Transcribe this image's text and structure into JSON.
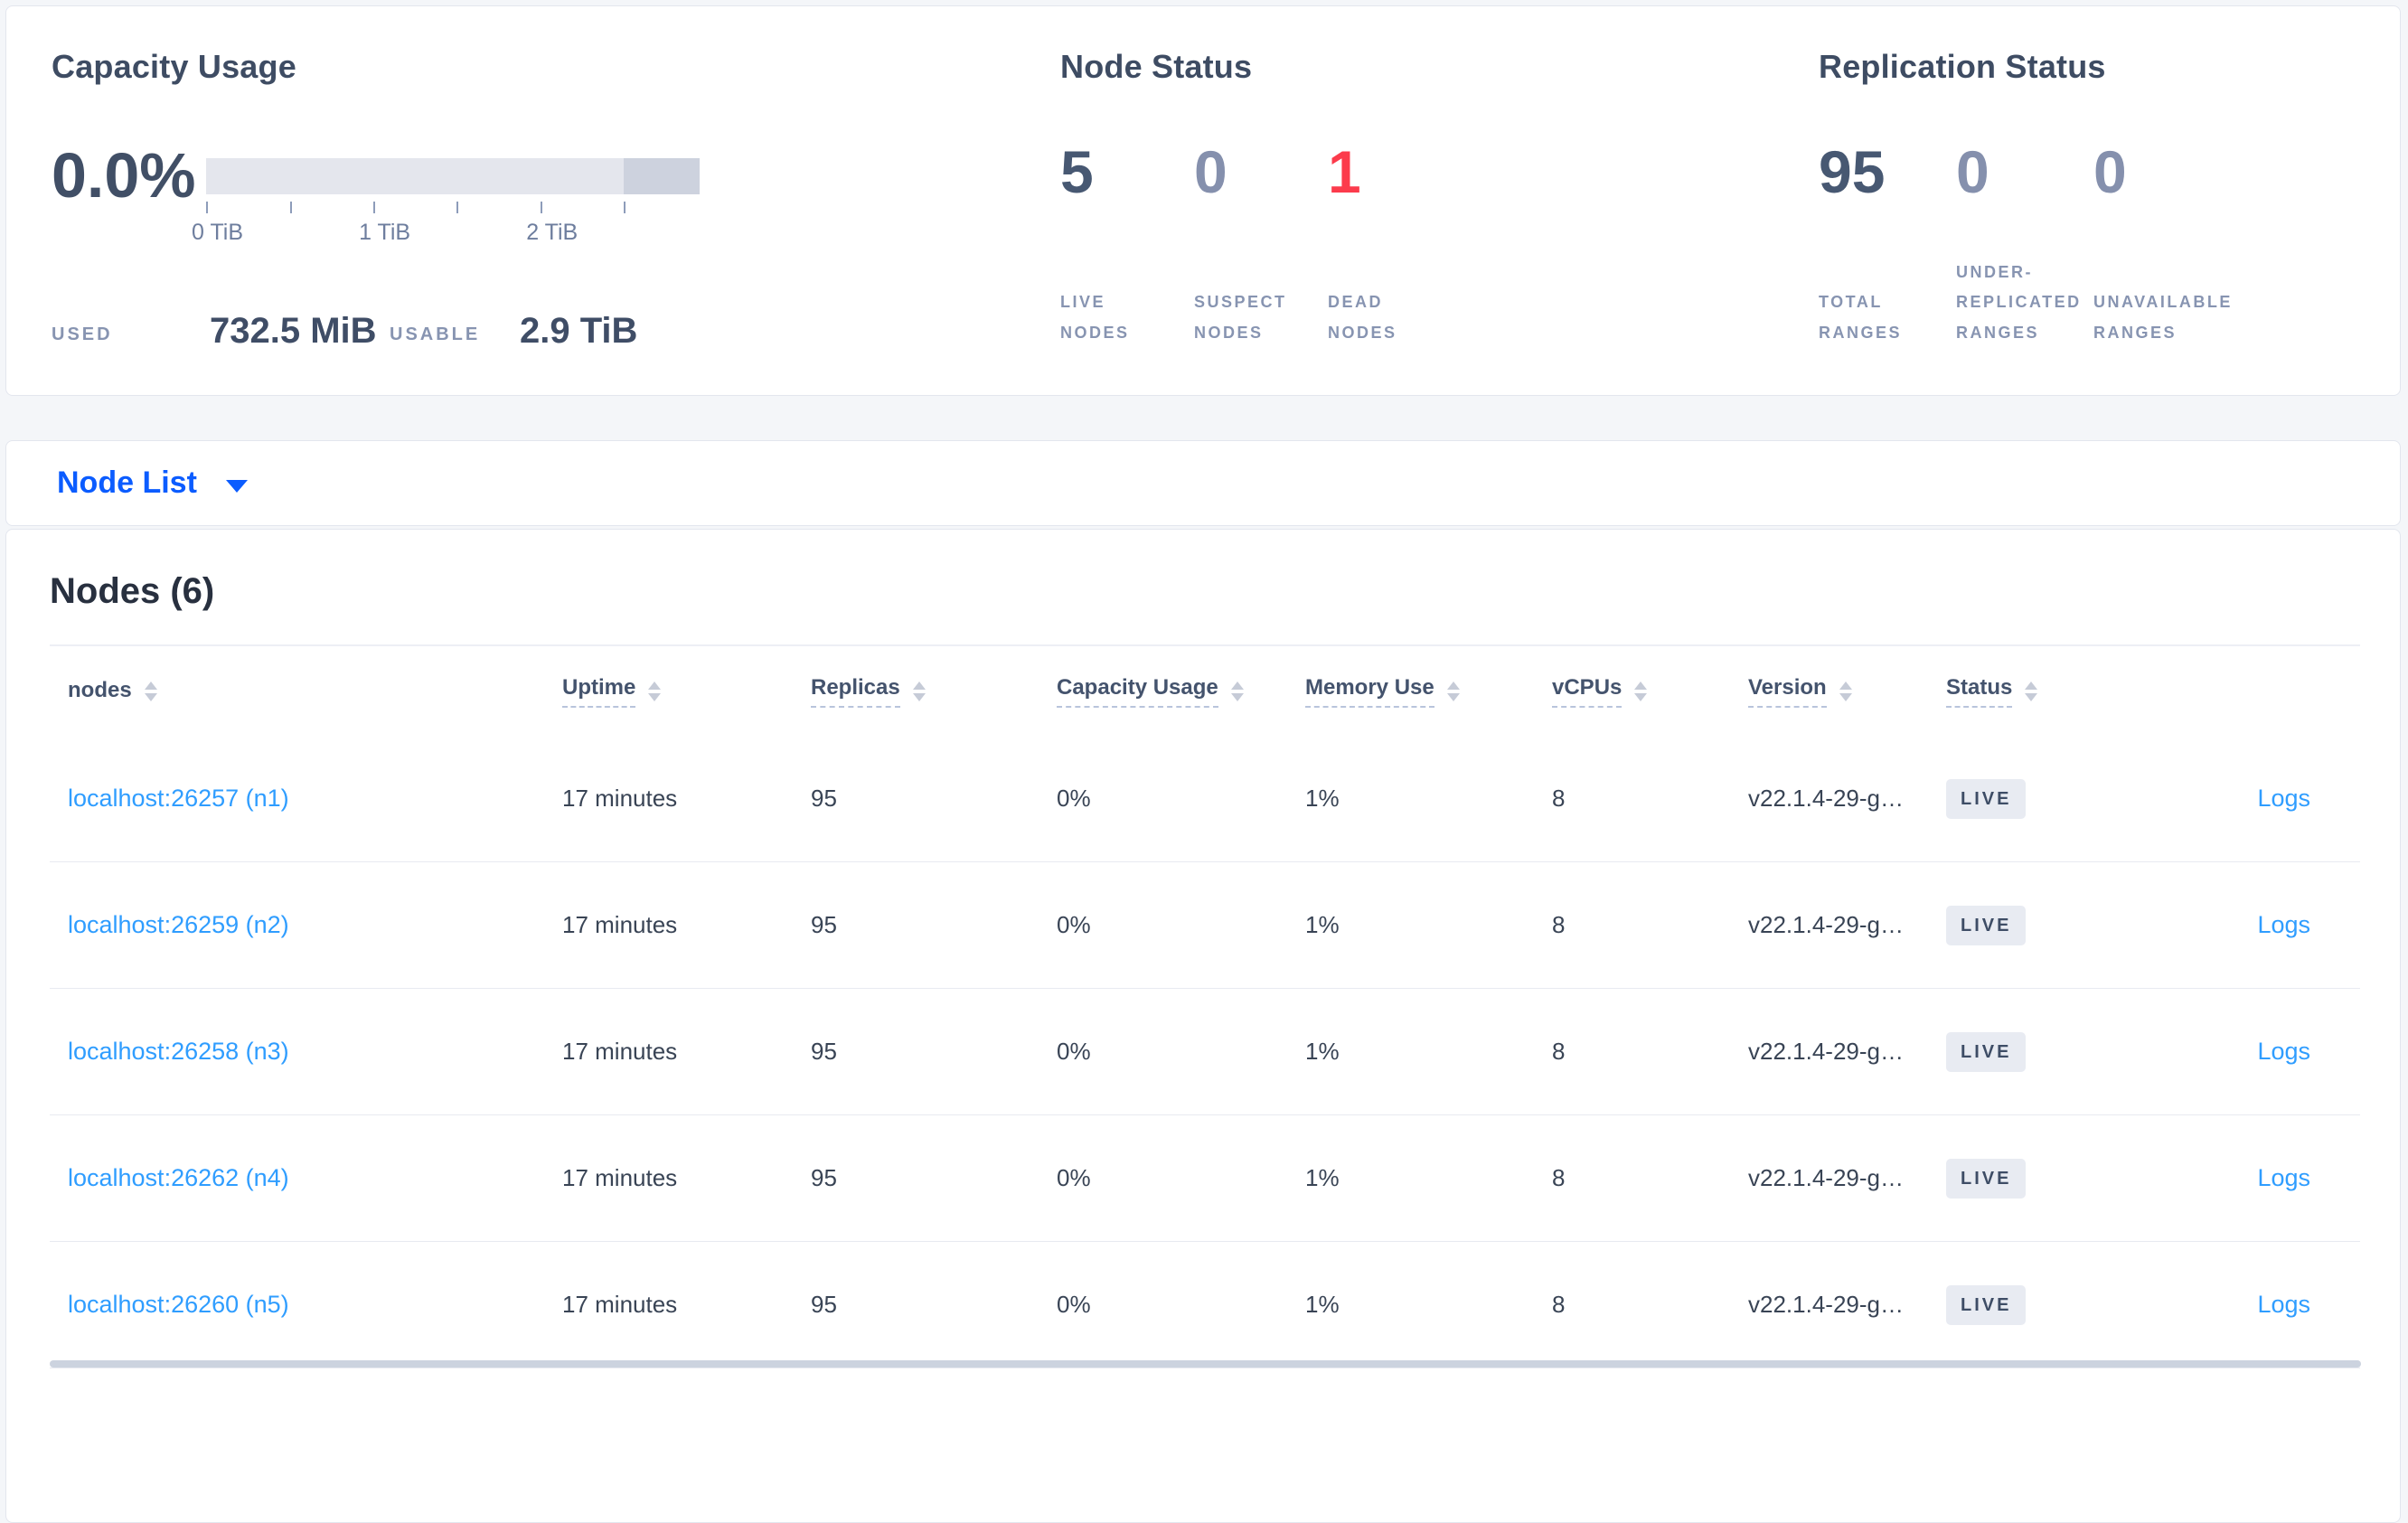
{
  "colors": {
    "accent_blue": "#0b5cff",
    "link_blue": "#2f9dff",
    "danger_red": "#fc3b4c",
    "dark_slate": "#475872",
    "muted_slate": "#8590ad",
    "label_gray": "#8794b1",
    "badge_bg": "#e8ebf2",
    "bar_light": "#e4e6ed",
    "bar_dark": "#cdd2de"
  },
  "capacity_card": {
    "title": "Capacity Usage",
    "percent_used": "0.0%",
    "gauge": {
      "ticks": [
        {
          "pct": 0,
          "label": "0 TiB"
        },
        {
          "pct": 16.95,
          "label": ""
        },
        {
          "pct": 33.9,
          "label": "1 TiB"
        },
        {
          "pct": 50.8,
          "label": ""
        },
        {
          "pct": 67.8,
          "label": "2 TiB"
        },
        {
          "pct": 84.7,
          "label": ""
        }
      ],
      "dark_segment_pct": 15.3
    },
    "used_label": "USED",
    "used_value": "732.5 MiB",
    "usable_label": "USABLE",
    "usable_value": "2.9 TiB"
  },
  "node_status_card": {
    "title": "Node Status",
    "stats": [
      {
        "value": "5",
        "label": "LIVE NODES",
        "tone": "dark"
      },
      {
        "value": "0",
        "label": "SUSPECT NODES",
        "tone": "muted"
      },
      {
        "value": "1",
        "label": "DEAD NODES",
        "tone": "danger"
      }
    ]
  },
  "replication_card": {
    "title": "Replication Status",
    "stats": [
      {
        "value": "95",
        "label": "TOTAL RANGES",
        "tone": "dark"
      },
      {
        "value": "0",
        "label": "UNDER-REPLICATED RANGES",
        "tone": "muted"
      },
      {
        "value": "0",
        "label": "UNAVAILABLE RANGES",
        "tone": "muted"
      }
    ]
  },
  "view_selector": {
    "label": "Node List"
  },
  "nodes_section": {
    "title": "Nodes (6)",
    "columns": [
      {
        "label": "nodes",
        "tooltip": false
      },
      {
        "label": "Uptime",
        "tooltip": true
      },
      {
        "label": "Replicas",
        "tooltip": true
      },
      {
        "label": "Capacity Usage",
        "tooltip": true
      },
      {
        "label": "Memory Use",
        "tooltip": true
      },
      {
        "label": "vCPUs",
        "tooltip": true
      },
      {
        "label": "Version",
        "tooltip": true
      },
      {
        "label": "Status",
        "tooltip": true
      }
    ],
    "rows": [
      {
        "node": "localhost:26257 (n1)",
        "uptime": "17 minutes",
        "replicas": "95",
        "capacity_usage": "0%",
        "memory_use": "1%",
        "vcpus": "8",
        "version": "v22.1.4-29-g…",
        "status": "LIVE",
        "logs_label": "Logs"
      },
      {
        "node": "localhost:26259 (n2)",
        "uptime": "17 minutes",
        "replicas": "95",
        "capacity_usage": "0%",
        "memory_use": "1%",
        "vcpus": "8",
        "version": "v22.1.4-29-g…",
        "status": "LIVE",
        "logs_label": "Logs"
      },
      {
        "node": "localhost:26258 (n3)",
        "uptime": "17 minutes",
        "replicas": "95",
        "capacity_usage": "0%",
        "memory_use": "1%",
        "vcpus": "8",
        "version": "v22.1.4-29-g…",
        "status": "LIVE",
        "logs_label": "Logs"
      },
      {
        "node": "localhost:26262 (n4)",
        "uptime": "17 minutes",
        "replicas": "95",
        "capacity_usage": "0%",
        "memory_use": "1%",
        "vcpus": "8",
        "version": "v22.1.4-29-g…",
        "status": "LIVE",
        "logs_label": "Logs"
      },
      {
        "node": "localhost:26260 (n5)",
        "uptime": "17 minutes",
        "replicas": "95",
        "capacity_usage": "0%",
        "memory_use": "1%",
        "vcpus": "8",
        "version": "v22.1.4-29-g…",
        "status": "LIVE",
        "logs_label": "Logs"
      }
    ]
  }
}
